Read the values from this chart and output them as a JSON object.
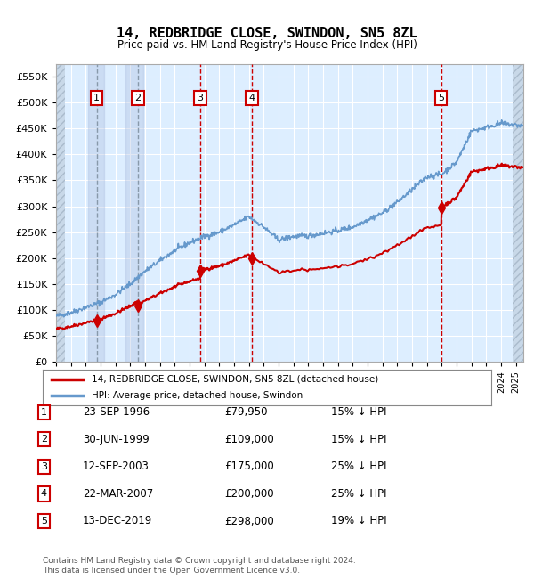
{
  "title": "14, REDBRIDGE CLOSE, SWINDON, SN5 8ZL",
  "subtitle": "Price paid vs. HM Land Registry's House Price Index (HPI)",
  "ylim": [
    0,
    575000
  ],
  "yticks": [
    0,
    50000,
    100000,
    150000,
    200000,
    250000,
    300000,
    350000,
    400000,
    450000,
    500000,
    550000
  ],
  "ytick_labels": [
    "£0",
    "£50K",
    "£100K",
    "£150K",
    "£200K",
    "£250K",
    "£300K",
    "£350K",
    "£400K",
    "£450K",
    "£500K",
    "£550K"
  ],
  "xlim_start": 1994.0,
  "xlim_end": 2025.5,
  "background_color": "#ffffff",
  "plot_bg_color": "#ddeeff",
  "grid_color": "#ffffff",
  "red_line_color": "#cc0000",
  "blue_line_color": "#6699cc",
  "sale_dates": [
    1996.73,
    1999.5,
    2003.71,
    2007.22,
    2019.96
  ],
  "sale_prices": [
    79950,
    109000,
    175000,
    200000,
    298000
  ],
  "sale_labels": [
    "1",
    "2",
    "3",
    "4",
    "5"
  ],
  "legend_label_red": "14, REDBRIDGE CLOSE, SWINDON, SN5 8ZL (detached house)",
  "legend_label_blue": "HPI: Average price, detached house, Swindon",
  "footer_text": "Contains HM Land Registry data © Crown copyright and database right 2024.\nThis data is licensed under the Open Government Licence v3.0.",
  "table_data": [
    [
      "1",
      "23-SEP-1996",
      "£79,950",
      "15% ↓ HPI"
    ],
    [
      "2",
      "30-JUN-1999",
      "£109,000",
      "15% ↓ HPI"
    ],
    [
      "3",
      "12-SEP-2003",
      "£175,000",
      "25% ↓ HPI"
    ],
    [
      "4",
      "22-MAR-2007",
      "£200,000",
      "25% ↓ HPI"
    ],
    [
      "5",
      "13-DEC-2019",
      "£298,000",
      "19% ↓ HPI"
    ]
  ],
  "hpi_key_years": [
    1994,
    1995,
    1996,
    1997,
    1998,
    1999,
    2000,
    2001,
    2002,
    2003,
    2004,
    2005,
    2006,
    2007,
    2008,
    2009,
    2010,
    2011,
    2012,
    2013,
    2014,
    2015,
    2016,
    2017,
    2018,
    2019,
    2020,
    2021,
    2022,
    2023,
    2024,
    2025.5
  ],
  "hpi_key_values": [
    88000,
    95000,
    105000,
    115000,
    130000,
    150000,
    175000,
    195000,
    215000,
    230000,
    242000,
    250000,
    264000,
    280000,
    260000,
    235000,
    242000,
    243000,
    248000,
    253000,
    260000,
    274000,
    287000,
    308000,
    332000,
    357000,
    362000,
    385000,
    445000,
    452000,
    460000,
    455000
  ]
}
